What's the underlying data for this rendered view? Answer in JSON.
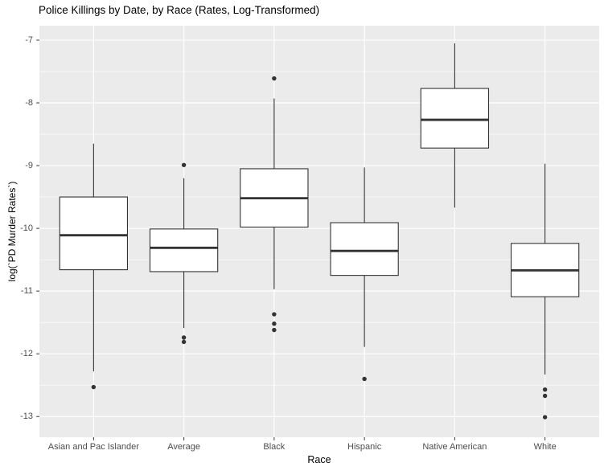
{
  "chart_data": {
    "type": "boxplot",
    "title": "Police Killings by Date, by Race (Rates, Log-Transformed)",
    "xlabel": "Race",
    "ylabel": "log(`PD Murder Rates`)",
    "ylim": [
      -13.33,
      -6.77
    ],
    "yticks": [
      -7,
      -8,
      -9,
      -10,
      -11,
      -12,
      -13
    ],
    "yminor": [
      -7.5,
      -8.5,
      -9.5,
      -10.5,
      -11.5,
      -12.5
    ],
    "categories": [
      "Asian and Pac Islander",
      "Average",
      "Black",
      "Hispanic",
      "Native American",
      "White"
    ],
    "boxes": [
      {
        "category": "Asian and Pac Islander",
        "whisker_low": -12.28,
        "q1": -10.66,
        "median": -10.11,
        "q3": -9.5,
        "whisker_high": -8.65,
        "outliers": [
          -12.53
        ]
      },
      {
        "category": "Average",
        "whisker_low": -11.59,
        "q1": -10.69,
        "median": -10.31,
        "q3": -10.01,
        "whisker_high": -9.2,
        "outliers": [
          -8.99,
          -11.74,
          -11.81
        ]
      },
      {
        "category": "Black",
        "whisker_low": -10.97,
        "q1": -9.98,
        "median": -9.52,
        "q3": -9.05,
        "whisker_high": -7.93,
        "outliers": [
          -7.61,
          -11.37,
          -11.52,
          -11.62
        ]
      },
      {
        "category": "Hispanic",
        "whisker_low": -11.89,
        "q1": -10.75,
        "median": -10.36,
        "q3": -9.91,
        "whisker_high": -9.03,
        "outliers": [
          -12.4
        ]
      },
      {
        "category": "Native American",
        "whisker_low": -9.67,
        "q1": -8.72,
        "median": -8.27,
        "q3": -7.77,
        "whisker_high": -7.05,
        "outliers": []
      },
      {
        "category": "White",
        "whisker_low": -12.33,
        "q1": -11.09,
        "median": -10.67,
        "q3": -10.24,
        "whisker_high": -8.97,
        "outliers": [
          -12.57,
          -12.67,
          -13.01
        ]
      }
    ],
    "grid": "major-and-minor-horizontal, major-vertical-at-categories",
    "legend": "none",
    "colors": {
      "panel_background": "#EBEBEB",
      "grid_line": "#FFFFFF",
      "box_fill": "#FFFFFF",
      "box_stroke": "#333333",
      "tick_mark": "#333333",
      "axis_text": "#4D4D4D",
      "title_text": "#000000"
    }
  }
}
